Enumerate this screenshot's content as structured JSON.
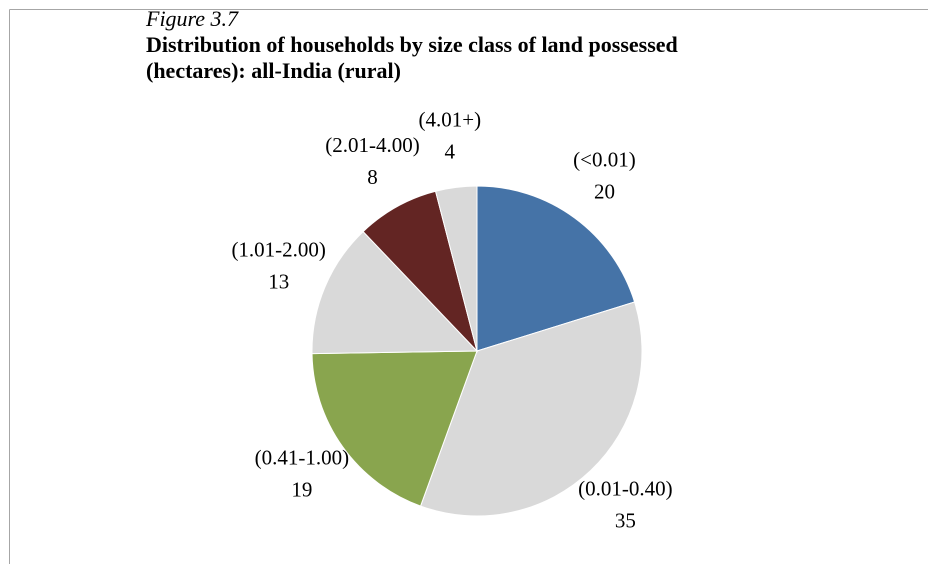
{
  "chart_data": {
    "type": "pie",
    "figure_label": "Figure 3.7",
    "title": "Distribution of households by size class of land possessed (hectares): all-India (rural)",
    "categories": [
      "(<0.01)",
      "(0.01-0.40)",
      "(0.41-1.00)",
      "(1.01-2.00)",
      "(2.01-4.00)",
      "(4.01+)"
    ],
    "values": [
      20,
      35,
      19,
      13,
      8,
      4
    ],
    "colors": [
      "#4573a7",
      "#d9d9d9",
      "#89a54e",
      "#d9d9d9",
      "#632523",
      "#d9d9d9"
    ]
  }
}
